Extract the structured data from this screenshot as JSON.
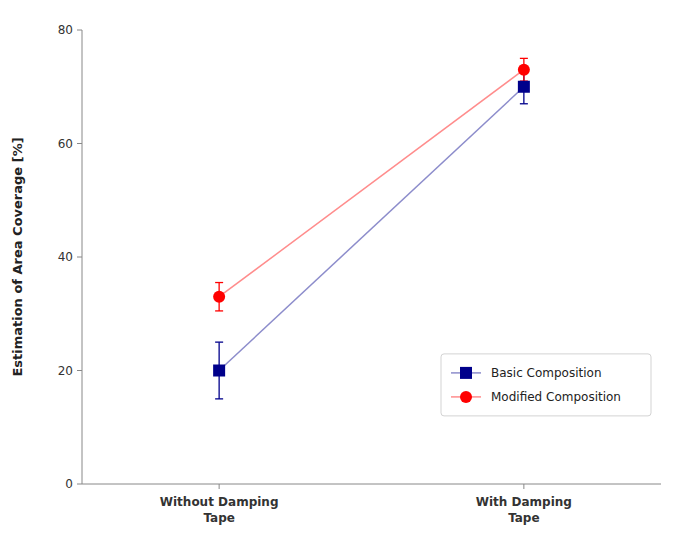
{
  "chart_data": {
    "type": "line",
    "categories": [
      "Without Damping\nTape",
      "With Damping\nTape"
    ],
    "y_label": "Estimation of Area Coverage [%]",
    "ylim": [
      0,
      80
    ],
    "yticks": [
      0,
      20,
      40,
      60,
      80
    ],
    "grid": false,
    "legend": "lower right",
    "series": [
      {
        "name": "Basic Composition",
        "color": "#00008B",
        "marker": "square",
        "values": [
          20,
          70
        ],
        "errors": [
          5,
          3
        ]
      },
      {
        "name": "Modified Composition",
        "color": "#FF0000",
        "marker": "circle",
        "values": [
          33,
          73
        ],
        "errors": [
          2.5,
          2
        ]
      }
    ]
  }
}
